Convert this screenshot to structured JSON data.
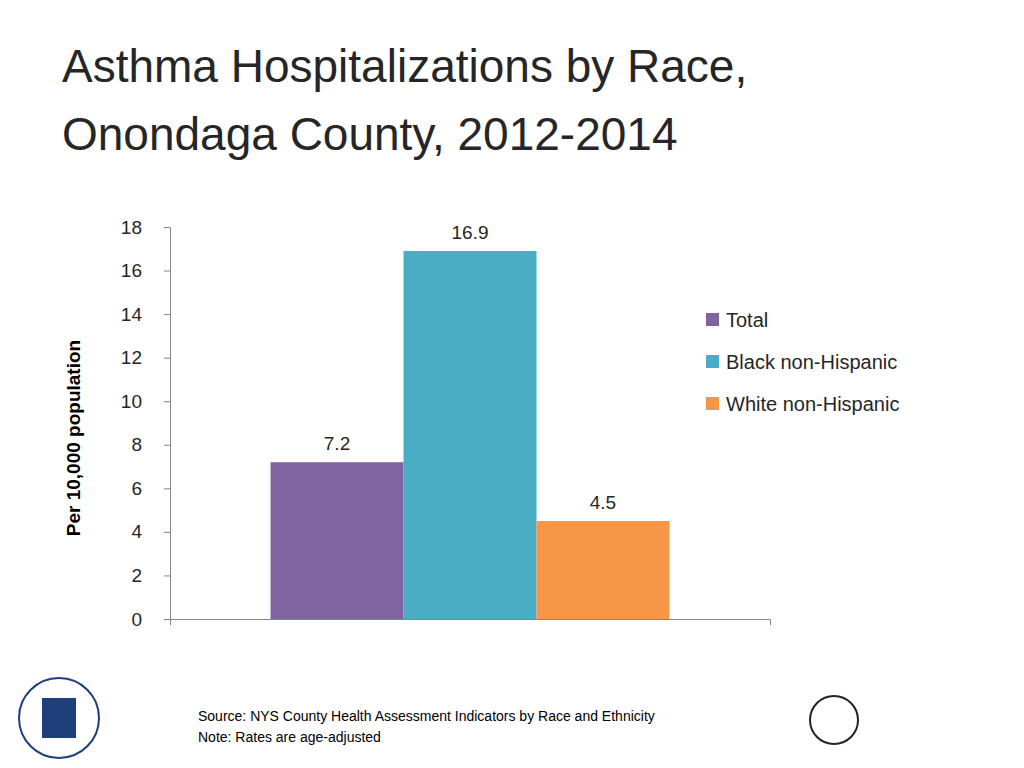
{
  "chart_data": {
    "type": "bar",
    "title": "Asthma Hospitalizations by Race, Onondaga County, 2012-2014",
    "y_label": "Per 10,000 population",
    "categories": [
      null
    ],
    "series": [
      {
        "name": "Total",
        "color": "#8064a2",
        "values": [
          7.2
        ]
      },
      {
        "name": "Black non-Hispanic",
        "color": "#4bacc6",
        "values": [
          16.9
        ]
      },
      {
        "name": "White non-Hispanic",
        "color": "#f79646",
        "values": [
          4.5
        ]
      }
    ],
    "ylim": [
      0,
      18
    ],
    "yticks": [
      0,
      2,
      4,
      6,
      8,
      10,
      12,
      14,
      16,
      18
    ],
    "grid": false,
    "legend": "right",
    "data_labels": true,
    "annotations": [
      "Source: NYS County Health Assessment Indicators by Race and Ethnicity",
      "Note: Rates are age-adjusted"
    ]
  }
}
